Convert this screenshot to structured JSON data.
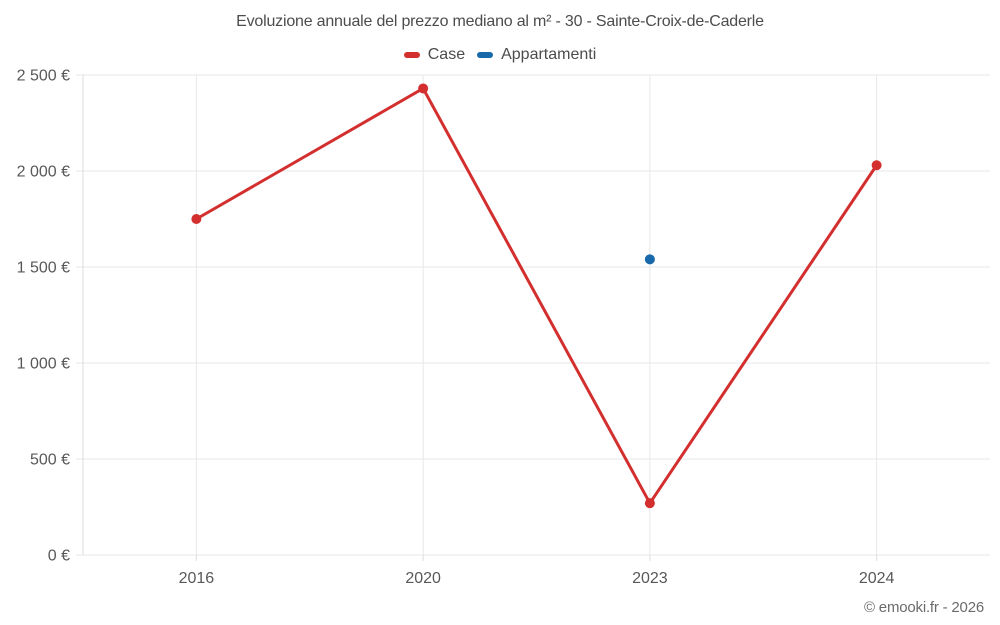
{
  "title": "Evoluzione annuale del prezzo mediano al m² - 30 - Sainte-Croix-de-Caderle",
  "footer": {
    "copyright": "© emooki.fr - 2026"
  },
  "colors": {
    "background": "#ffffff",
    "grid": "#e7e7e7",
    "axis": "#dedede",
    "tick_text": "#585858",
    "title_text": "#4c4c4c",
    "copyright_text": "#6b6b6b"
  },
  "chart_data": {
    "type": "line",
    "categories": [
      "2016",
      "2020",
      "2023",
      "2024"
    ],
    "series": [
      {
        "name": "Case",
        "color": "#d32f2f",
        "values": [
          1750,
          2430,
          270,
          2030
        ]
      },
      {
        "name": "Appartamenti",
        "color": "#1769aa",
        "values": [
          null,
          null,
          1540,
          null
        ]
      }
    ],
    "ylim": [
      0,
      2500
    ],
    "ytick_step": 500,
    "ytick_labels": [
      "0 €",
      "500 €",
      "1 000 €",
      "1 500 €",
      "2 000 €",
      "2 500 €"
    ],
    "grid": true,
    "legend_position": "top",
    "xlabel": "",
    "ylabel": ""
  }
}
